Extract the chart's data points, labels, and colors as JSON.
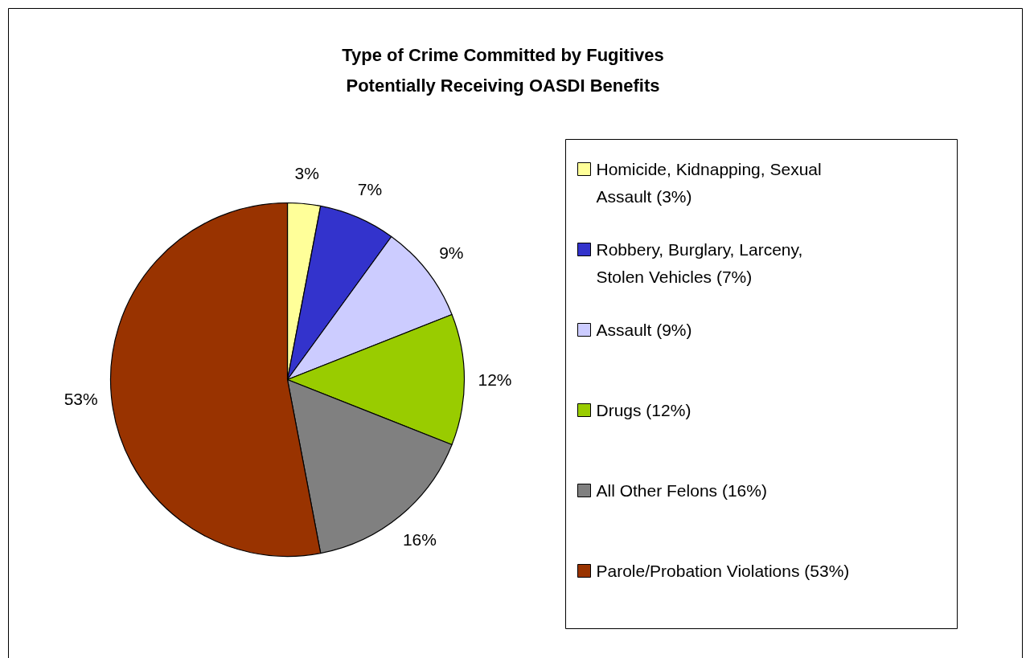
{
  "chart_data": {
    "type": "pie",
    "title": "Type of Crime Committed by Fugitives Potentially Receiving OASDI Benefits",
    "categories": [
      "Homicide, Kidnapping, Sexual Assault (3%)",
      "Robbery, Burglary, Larceny, Stolen Vehicles (7%)",
      "Assault (9%)",
      "Drugs (12%)",
      "All Other Felons (16%)",
      "Parole/Probation Violations (53%)"
    ],
    "values": [
      3,
      7,
      9,
      12,
      16,
      53
    ],
    "colors": [
      "#ffff99",
      "#3333cc",
      "#ccccff",
      "#99cc00",
      "#808080",
      "#993300"
    ],
    "value_labels": [
      "3%",
      "7%",
      "9%",
      "12%",
      "16%",
      "53%"
    ],
    "legend": "right"
  }
}
